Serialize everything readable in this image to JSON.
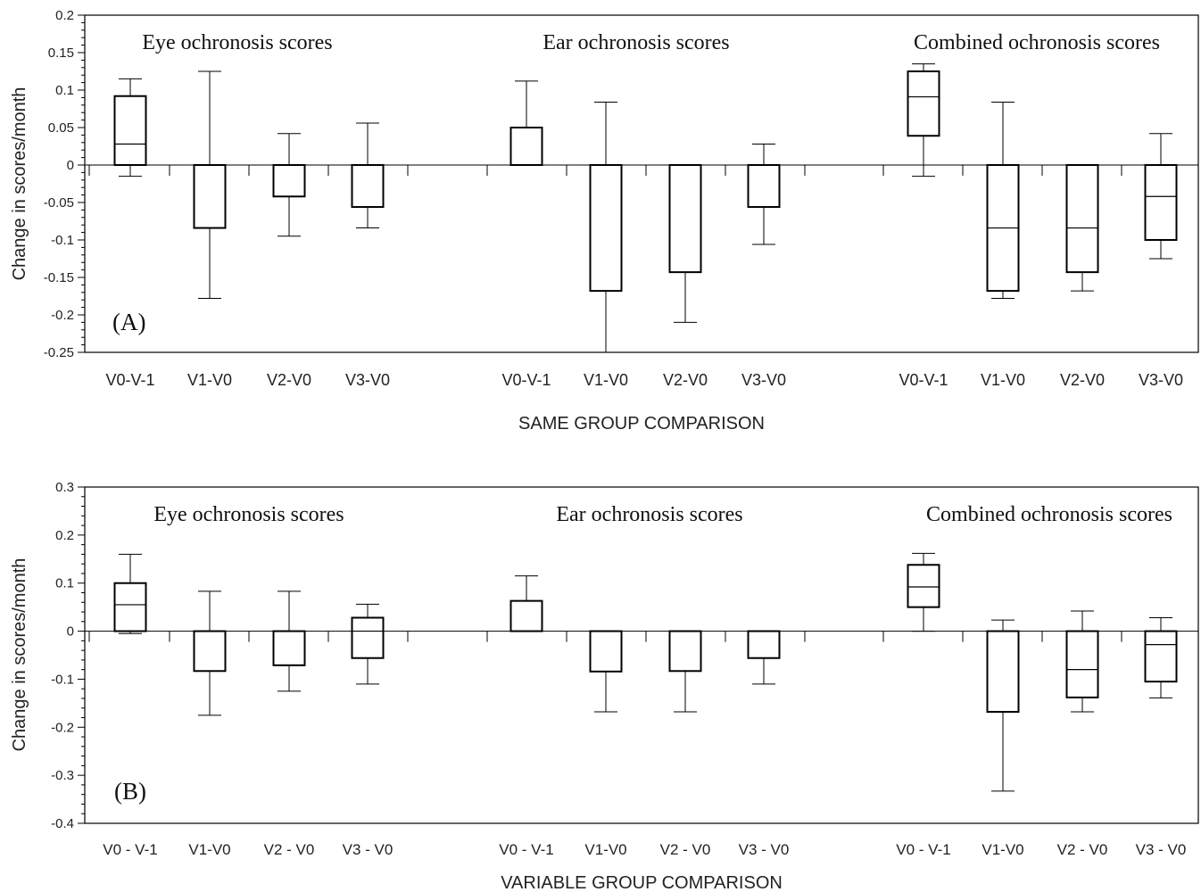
{
  "chart_data": [
    {
      "type": "box",
      "panel_label": "(A)",
      "ylabel": "Change in scores/month",
      "xlabel": "SAME GROUP COMPARISON",
      "ylim": [
        -0.25,
        0.2
      ],
      "yticks": [
        0.2,
        0.15,
        0.1,
        0.05,
        0,
        -0.05,
        -0.1,
        -0.15,
        -0.2,
        -0.25
      ],
      "ytick_labels": [
        "0.2",
        "0.15",
        "0.1",
        "0.05",
        "0",
        "-0.05",
        "-0.1",
        "-0.15",
        "-0.2",
        "-0.25"
      ],
      "groups": [
        {
          "name": "Eye ochronosis scores",
          "boxes": [
            {
              "label": "V0-V-1",
              "whisker_low": -0.015,
              "q1": 0.0,
              "median": 0.028,
              "q3": 0.092,
              "whisker_high": 0.115
            },
            {
              "label": "V1-V0",
              "whisker_low": -0.178,
              "q1": -0.084,
              "median": null,
              "q3": 0.0,
              "whisker_high": 0.125
            },
            {
              "label": "V2-V0",
              "whisker_low": -0.095,
              "q1": -0.042,
              "median": null,
              "q3": 0.0,
              "whisker_high": 0.042
            },
            {
              "label": "V3-V0",
              "whisker_low": -0.084,
              "q1": -0.056,
              "median": null,
              "q3": 0.0,
              "whisker_high": 0.056
            }
          ]
        },
        {
          "name": "Ear ochronosis scores",
          "boxes": [
            {
              "label": "V0-V-1",
              "whisker_low": null,
              "q1": 0.0,
              "median": null,
              "q3": 0.05,
              "whisker_high": 0.112
            },
            {
              "label": "V1-V0",
              "whisker_low": -0.25,
              "q1": -0.168,
              "median": null,
              "q3": 0.0,
              "whisker_high": 0.084
            },
            {
              "label": "V2-V0",
              "whisker_low": -0.21,
              "q1": -0.143,
              "median": null,
              "q3": 0.0,
              "whisker_high": null
            },
            {
              "label": "V3-V0",
              "whisker_low": -0.106,
              "q1": -0.056,
              "median": null,
              "q3": 0.0,
              "whisker_high": 0.028
            }
          ]
        },
        {
          "name": "Combined ochronosis scores",
          "boxes": [
            {
              "label": "V0-V-1",
              "whisker_low": -0.015,
              "q1": 0.039,
              "median": 0.091,
              "q3": 0.125,
              "whisker_high": 0.135
            },
            {
              "label": "V1-V0",
              "whisker_low": -0.178,
              "q1": -0.168,
              "median": -0.084,
              "q3": 0.0,
              "whisker_high": 0.084
            },
            {
              "label": "V2-V0",
              "whisker_low": -0.168,
              "q1": -0.143,
              "median": -0.084,
              "q3": 0.0,
              "whisker_high": null
            },
            {
              "label": "V3-V0",
              "whisker_low": -0.125,
              "q1": -0.1,
              "median": -0.042,
              "q3": 0.0,
              "whisker_high": 0.042
            }
          ]
        }
      ]
    },
    {
      "type": "box",
      "panel_label": "(B)",
      "ylabel": "Change in scores/month",
      "xlabel": "VARIABLE GROUP COMPARISON",
      "ylim": [
        -0.4,
        0.3
      ],
      "yticks": [
        0.3,
        0.2,
        0.1,
        0,
        -0.1,
        -0.2,
        -0.3,
        -0.4
      ],
      "ytick_labels": [
        "0.3",
        "0.2",
        "0.1",
        "0",
        "-0.1",
        "-0.2",
        "-0.3",
        "-0.4"
      ],
      "groups": [
        {
          "name": "Eye ochronosis scores",
          "boxes": [
            {
              "label": "V0 - V-1",
              "whisker_low": -0.005,
              "q1": 0.0,
              "median": 0.055,
              "q3": 0.1,
              "whisker_high": 0.16
            },
            {
              "label": "V1-V0",
              "whisker_low": -0.175,
              "q1": -0.083,
              "median": null,
              "q3": 0.0,
              "whisker_high": 0.083
            },
            {
              "label": "V2 - V0",
              "whisker_low": -0.125,
              "q1": -0.071,
              "median": null,
              "q3": 0.0,
              "whisker_high": 0.083
            },
            {
              "label": "V3 - V0",
              "whisker_low": -0.11,
              "q1": -0.056,
              "median": 0.0,
              "q3": 0.028,
              "whisker_high": 0.056
            }
          ]
        },
        {
          "name": "Ear ochronosis scores",
          "boxes": [
            {
              "label": "V0 - V-1",
              "whisker_low": null,
              "q1": 0.0,
              "median": null,
              "q3": 0.063,
              "whisker_high": 0.115
            },
            {
              "label": "V1-V0",
              "whisker_low": -0.168,
              "q1": -0.084,
              "median": null,
              "q3": 0.0,
              "whisker_high": null
            },
            {
              "label": "V2 - V0",
              "whisker_low": -0.168,
              "q1": -0.083,
              "median": null,
              "q3": 0.0,
              "whisker_high": null
            },
            {
              "label": "V3 - V0",
              "whisker_low": -0.11,
              "q1": -0.056,
              "median": null,
              "q3": 0.0,
              "whisker_high": null
            }
          ]
        },
        {
          "name": "Combined ochronosis scores",
          "boxes": [
            {
              "label": "V0 - V-1",
              "whisker_low": 0.0,
              "q1": 0.05,
              "median": 0.092,
              "q3": 0.138,
              "whisker_high": 0.162
            },
            {
              "label": "V1-V0",
              "whisker_low": -0.333,
              "q1": -0.168,
              "median": null,
              "q3": 0.0,
              "whisker_high": 0.023
            },
            {
              "label": "V2 - V0",
              "whisker_low": -0.168,
              "q1": -0.138,
              "median": -0.08,
              "q3": 0.0,
              "whisker_high": 0.042
            },
            {
              "label": "V3 - V0",
              "whisker_low": -0.139,
              "q1": -0.105,
              "median": -0.028,
              "q3": 0.0,
              "whisker_high": 0.028
            }
          ]
        }
      ]
    }
  ]
}
